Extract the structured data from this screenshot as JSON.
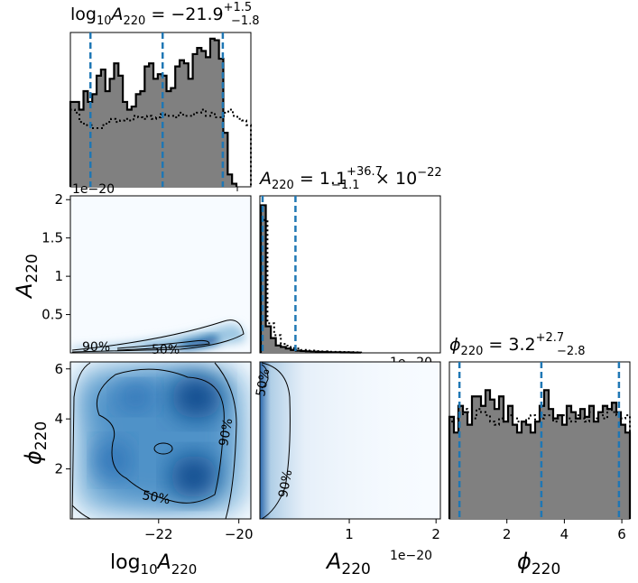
{
  "figure": {
    "type": "corner-plot",
    "background": "#ffffff",
    "hist_fill": "#808080",
    "quantile_color": "#1f77b4",
    "density_cmap": "Blues"
  },
  "chart_data": [
    {
      "type": "bar",
      "panel": "hist-log10A220",
      "title": "log₁₀A₂₂₀ = −21.9 +1.5 −1.8",
      "title_parts": {
        "lhs": "log",
        "sub1": "10",
        "var": "A",
        "sub2": "220",
        "value": " = −21.9",
        "sup": "+1.5",
        "sub": "−1.8"
      },
      "xlim": [
        -24.2,
        -19.7
      ],
      "quantiles": [
        -23.7,
        -21.9,
        -20.4
      ],
      "solid_step_height": [
        0.55,
        0.55,
        0.5,
        0.62,
        0.55,
        0.6,
        0.72,
        0.76,
        0.62,
        0.7,
        0.8,
        0.72,
        0.55,
        0.5,
        0.52,
        0.6,
        0.62,
        0.78,
        0.8,
        0.7,
        0.73,
        0.72,
        0.62,
        0.64,
        0.78,
        0.82,
        0.8,
        0.7,
        0.86,
        0.9,
        0.88,
        0.84,
        0.96,
        0.95,
        0.83,
        0.35,
        0.08,
        0.02
      ],
      "dotted_step_height": [
        0.5,
        0.48,
        0.42,
        0.4,
        0.4,
        0.38,
        0.38,
        0.4,
        0.42,
        0.44,
        0.42,
        0.43,
        0.44,
        0.43,
        0.46,
        0.45,
        0.44,
        0.46,
        0.44,
        0.45,
        0.47,
        0.46,
        0.46,
        0.45,
        0.48,
        0.46,
        0.46,
        0.47,
        0.48,
        0.5,
        0.46,
        0.48,
        0.45,
        0.45,
        0.48,
        0.5,
        0.46,
        0.44,
        0.43,
        0.4
      ]
    },
    {
      "type": "bar",
      "panel": "hist-A220",
      "title": "A₂₂₀ = 1.1 +36.7 −1.1 × 10⁻²²",
      "title_parts": {
        "var": "A",
        "sub2": "220",
        "value": " = 1.1",
        "sup": "+36.7",
        "sub": "−1.1",
        "tail": " × 10",
        "exp": "−22"
      },
      "xlim": [
        -0.03,
        2.05
      ],
      "offset_label": "1e−20",
      "quantiles": [
        0.001,
        0.38
      ],
      "solid_step_height": [
        1.0,
        0.18,
        0.1,
        0.05,
        0.04,
        0.03,
        0.02,
        0.015,
        0.012,
        0.01,
        0.008,
        0.007,
        0.006,
        0.005,
        0.004,
        0.004,
        0.003,
        0.003,
        0.002,
        0.002
      ],
      "dotted_step_height": [
        0.9,
        0.2,
        0.12,
        0.06,
        0.04,
        0.03,
        0.02,
        0.015,
        0.012,
        0.01,
        0.008,
        0.007,
        0.006,
        0.005,
        0.004
      ]
    },
    {
      "type": "bar",
      "panel": "hist-phi220",
      "title": "ϕ₂₂₀ = 3.2 +2.7 −2.8",
      "title_parts": {
        "var": "ϕ",
        "sub2": "220",
        "value": " = 3.2",
        "sup": "+2.7",
        "sub": "−2.8"
      },
      "xlim": [
        0.0,
        6.28
      ],
      "quantiles": [
        0.35,
        3.2,
        5.9
      ],
      "xticks": [
        2,
        4,
        6
      ],
      "xlabel_parts": {
        "var": "ϕ",
        "sub2": "220"
      },
      "solid_step_height": [
        0.65,
        0.55,
        0.72,
        0.68,
        0.6,
        0.78,
        0.78,
        0.72,
        0.82,
        0.76,
        0.7,
        0.78,
        0.62,
        0.72,
        0.6,
        0.55,
        0.62,
        0.6,
        0.55,
        0.62,
        0.72,
        0.82,
        0.7,
        0.64,
        0.66,
        0.6,
        0.72,
        0.68,
        0.64,
        0.7,
        0.65,
        0.72,
        0.62,
        0.68,
        0.72,
        0.7,
        0.74,
        0.68,
        0.6,
        0.55
      ],
      "dotted_step_height": [
        0.62,
        0.64,
        0.66,
        0.7,
        0.68,
        0.64,
        0.7,
        0.68,
        0.66,
        0.62,
        0.6,
        0.64,
        0.62,
        0.66,
        0.64,
        0.62,
        0.62,
        0.64,
        0.66,
        0.62,
        0.64,
        0.66,
        0.66,
        0.62,
        0.64,
        0.66,
        0.64,
        0.62,
        0.66,
        0.64,
        0.62,
        0.68,
        0.64,
        0.66,
        0.64,
        0.7,
        0.68,
        0.66,
        0.64,
        0.66
      ]
    },
    {
      "type": "heatmap",
      "panel": "2d-log10A220-A220",
      "xlim": [
        -24.2,
        -19.7
      ],
      "ylim": [
        0,
        2.05
      ],
      "yticks": [
        0.5,
        1.0,
        1.5,
        2.0
      ],
      "ylabel_parts": {
        "var": "A",
        "sub2": "220"
      },
      "offset_label": "1e−20",
      "contour_labels": [
        "90%",
        "50%"
      ]
    },
    {
      "type": "heatmap",
      "panel": "2d-log10A220-phi220",
      "xlim": [
        -24.2,
        -19.7
      ],
      "ylim": [
        0,
        6.28
      ],
      "xticks": [
        -22,
        -20
      ],
      "yticks": [
        2,
        4,
        6
      ],
      "xlabel_parts": {
        "lhs": "log",
        "sub1": "10",
        "var": "A",
        "sub2": "220"
      },
      "ylabel_parts": {
        "var": "ϕ",
        "sub2": "220"
      },
      "contour_labels": [
        "90%",
        "50%"
      ]
    },
    {
      "type": "heatmap",
      "panel": "2d-A220-phi220",
      "xlim": [
        -0.03,
        2.05
      ],
      "ylim": [
        0,
        6.28
      ],
      "xticks": [
        1,
        2
      ],
      "xlabel_parts": {
        "var": "A",
        "sub2": "220"
      },
      "offset_label": "1e−20",
      "contour_labels": [
        "50%",
        "90%"
      ]
    }
  ]
}
